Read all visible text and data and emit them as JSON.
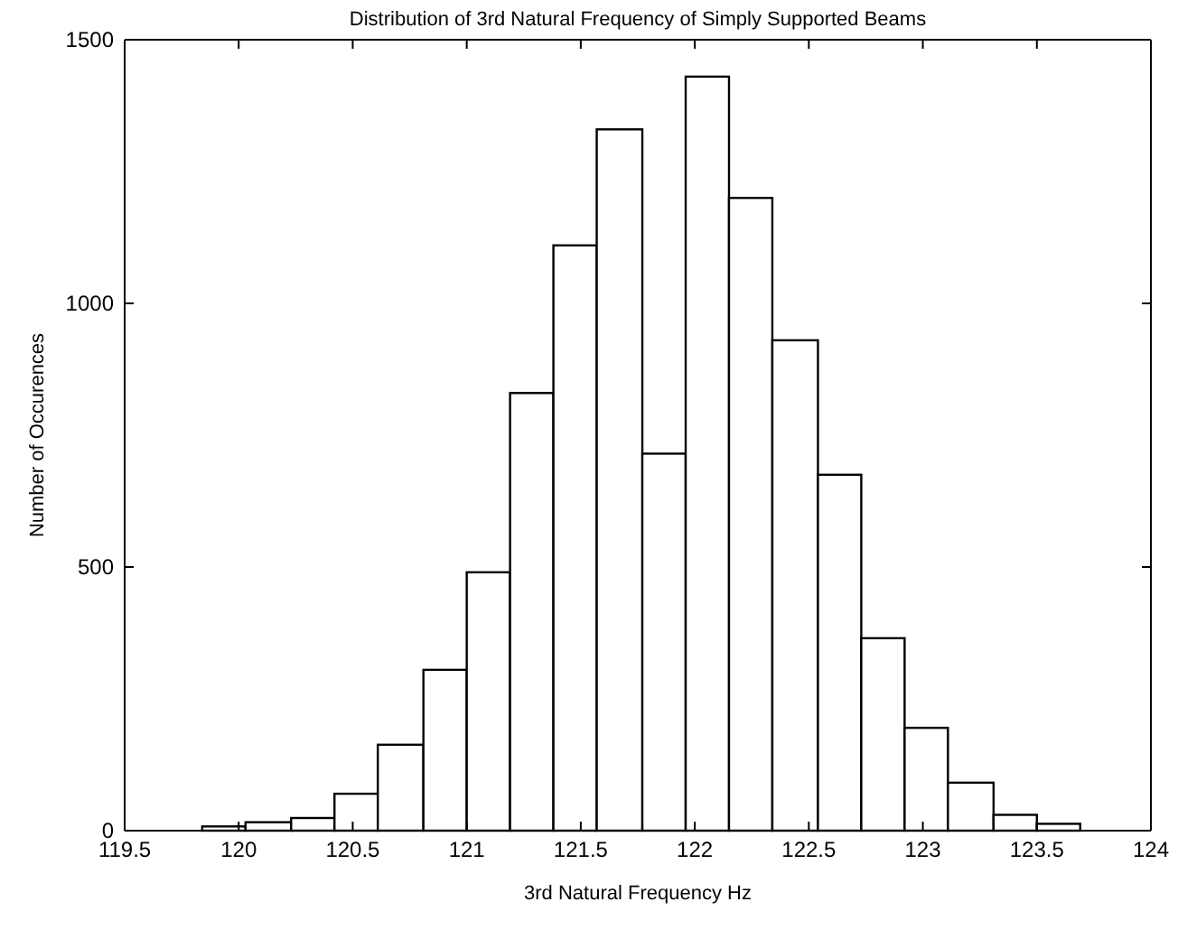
{
  "chart_data": {
    "type": "histogram",
    "title": "Distribution of 3rd Natural Frequency of Simply Supported Beams",
    "xlabel": "3rd Natural Frequency Hz",
    "ylabel": "Number of Occurences",
    "bins": [
      119.84,
      120.03,
      120.23,
      120.42,
      120.61,
      120.81,
      121.0,
      121.19,
      121.38,
      121.57,
      121.77,
      121.96,
      122.15,
      122.34,
      122.54,
      122.73,
      122.92,
      123.11,
      123.31,
      123.5,
      123.69
    ],
    "values": [
      8,
      16,
      24,
      70,
      163,
      305,
      490,
      830,
      1110,
      1330,
      715,
      1430,
      1200,
      930,
      675,
      365,
      195,
      91,
      30,
      13
    ],
    "color": "#ffffff",
    "xlim": [
      119.5,
      124
    ],
    "xticks": [
      119.5,
      120,
      120.5,
      121,
      121.5,
      122,
      122.5,
      123,
      123.5,
      124
    ],
    "ylim": [
      0,
      1500
    ],
    "yticks": [
      0,
      500,
      1000,
      1500
    ],
    "grid": false
  }
}
